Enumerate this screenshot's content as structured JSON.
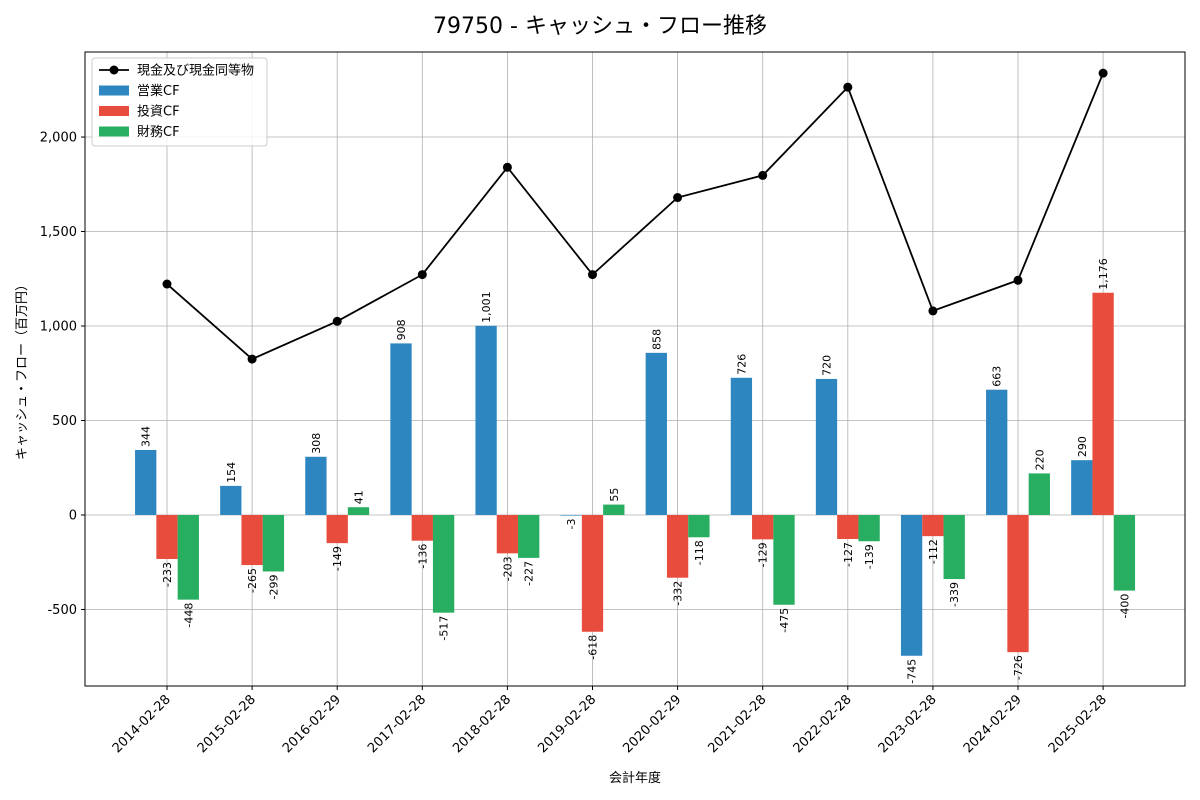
{
  "chart_data": {
    "type": "bar",
    "title": "79750 - キャッシュ・フロー推移",
    "xlabel": "会計年度",
    "ylabel": "キャッシュ・フロー（百万円）",
    "categories": [
      "2014-02-28",
      "2015-02-28",
      "2016-02-29",
      "2017-02-28",
      "2018-02-28",
      "2019-02-28",
      "2020-02-29",
      "2021-02-28",
      "2022-02-28",
      "2023-02-28",
      "2024-02-29",
      "2025-02-28"
    ],
    "ylim": [
      -905,
      2450
    ],
    "yticks": [
      -500,
      0,
      500,
      1000,
      1500,
      2000
    ],
    "ytick_labels": [
      "-500",
      "0",
      "500",
      "1,000",
      "1,500",
      "2,000"
    ],
    "grid": true,
    "legend_position": "top-left",
    "series": [
      {
        "name": "営業CF",
        "kind": "bar",
        "color": "#2e86c1",
        "values": [
          344,
          154,
          308,
          908,
          1001,
          -3,
          858,
          726,
          720,
          -745,
          663,
          290
        ],
        "labels": [
          "344",
          "154",
          "308",
          "908",
          "1,001",
          "-3",
          "858",
          "726",
          "720",
          "-745",
          "663",
          "290"
        ]
      },
      {
        "name": "投資CF",
        "kind": "bar",
        "color": "#e74c3c",
        "values": [
          -233,
          -265,
          -149,
          -136,
          -203,
          -618,
          -332,
          -129,
          -127,
          -112,
          -726,
          1176
        ],
        "labels": [
          "-233",
          "-265",
          "-149",
          "-136",
          "-203",
          "-618",
          "-332",
          "-129",
          "-127",
          "-112",
          "-726",
          "1,176"
        ]
      },
      {
        "name": "財務CF",
        "kind": "bar",
        "color": "#27ae60",
        "values": [
          -448,
          -299,
          41,
          -517,
          -227,
          55,
          -118,
          -475,
          -139,
          -339,
          220,
          -400
        ],
        "labels": [
          "-448",
          "-299",
          "41",
          "-517",
          "-227",
          "55",
          "-118",
          "-475",
          "-139",
          "-339",
          "220",
          "-400"
        ]
      },
      {
        "name": "現金及び現金同等物",
        "kind": "line",
        "color": "#000000",
        "values": [
          1222,
          825,
          1025,
          1272,
          1840,
          1272,
          1680,
          1797,
          2264,
          1080,
          1242,
          2338
        ]
      }
    ]
  }
}
